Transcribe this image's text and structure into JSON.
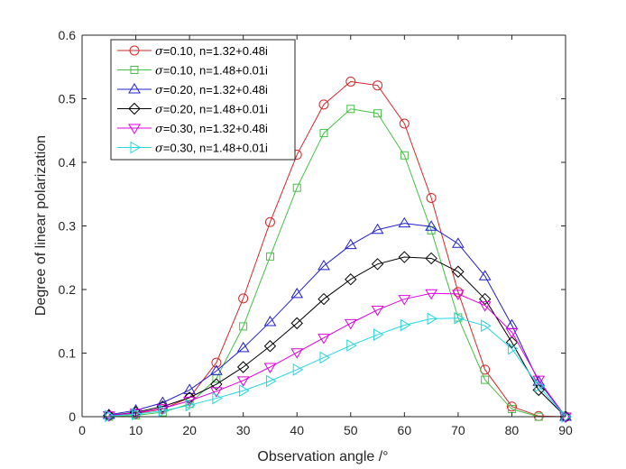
{
  "chart_data": {
    "type": "line",
    "title": "",
    "xlabel": "Observation angle /°",
    "ylabel": "Degree of linear polarization",
    "xlim": [
      0,
      90
    ],
    "ylim": [
      0,
      0.6
    ],
    "x_ticks": [
      0,
      10,
      20,
      30,
      40,
      50,
      60,
      70,
      80,
      90
    ],
    "y_ticks": [
      0,
      0.1,
      0.2,
      0.3,
      0.4,
      0.5,
      0.6
    ],
    "x_tick_labels": [
      "0",
      "10",
      "20",
      "30",
      "40",
      "50",
      "60",
      "70",
      "80",
      "90"
    ],
    "y_tick_labels": [
      "0",
      "0.1",
      "0.2",
      "0.3",
      "0.4",
      "0.5",
      "0.6"
    ],
    "grid": false,
    "legend_position": "top-left",
    "x": [
      5,
      10,
      15,
      20,
      25,
      30,
      35,
      40,
      45,
      50,
      55,
      60,
      65,
      70,
      75,
      80,
      85,
      90
    ],
    "series": [
      {
        "name": "σ=0.10, n=1.32+0.48i",
        "color": "#d62728",
        "marker": "circle",
        "values": [
          0.002,
          0.005,
          0.012,
          0.03,
          0.085,
          0.186,
          0.306,
          0.412,
          0.491,
          0.527,
          0.521,
          0.461,
          0.344,
          0.196,
          0.074,
          0.016,
          0.001,
          0.0
        ]
      },
      {
        "name": "σ=0.10, n=1.48+0.01i",
        "color": "#44c044",
        "marker": "square",
        "values": [
          0.0,
          0.002,
          0.007,
          0.02,
          0.06,
          0.142,
          0.252,
          0.36,
          0.446,
          0.484,
          0.477,
          0.411,
          0.293,
          0.156,
          0.058,
          0.012,
          0.0,
          0.0
        ]
      },
      {
        "name": "σ=0.20, n=1.32+0.48i",
        "color": "#1f1fcf",
        "marker": "triangle-up",
        "values": [
          0.003,
          0.01,
          0.022,
          0.042,
          0.072,
          0.108,
          0.149,
          0.193,
          0.237,
          0.27,
          0.294,
          0.304,
          0.299,
          0.272,
          0.221,
          0.144,
          0.055,
          0.0
        ]
      },
      {
        "name": "σ=0.20, n=1.48+0.01i",
        "color": "#000000",
        "marker": "diamond",
        "values": [
          0.002,
          0.007,
          0.016,
          0.03,
          0.051,
          0.078,
          0.111,
          0.147,
          0.185,
          0.216,
          0.24,
          0.251,
          0.249,
          0.228,
          0.185,
          0.117,
          0.042,
          0.0
        ]
      },
      {
        "name": "σ=0.30, n=1.32+0.48i",
        "color": "#e000e0",
        "marker": "triangle-down",
        "values": [
          0.002,
          0.006,
          0.013,
          0.025,
          0.04,
          0.057,
          0.078,
          0.101,
          0.124,
          0.147,
          0.168,
          0.185,
          0.194,
          0.193,
          0.175,
          0.133,
          0.058,
          0.0
        ]
      },
      {
        "name": "σ=0.30, n=1.48+0.01i",
        "color": "#22d6e0",
        "marker": "triangle-right",
        "values": [
          0.001,
          0.004,
          0.009,
          0.018,
          0.029,
          0.041,
          0.056,
          0.074,
          0.093,
          0.112,
          0.129,
          0.144,
          0.154,
          0.155,
          0.143,
          0.107,
          0.048,
          0.0
        ]
      }
    ]
  }
}
